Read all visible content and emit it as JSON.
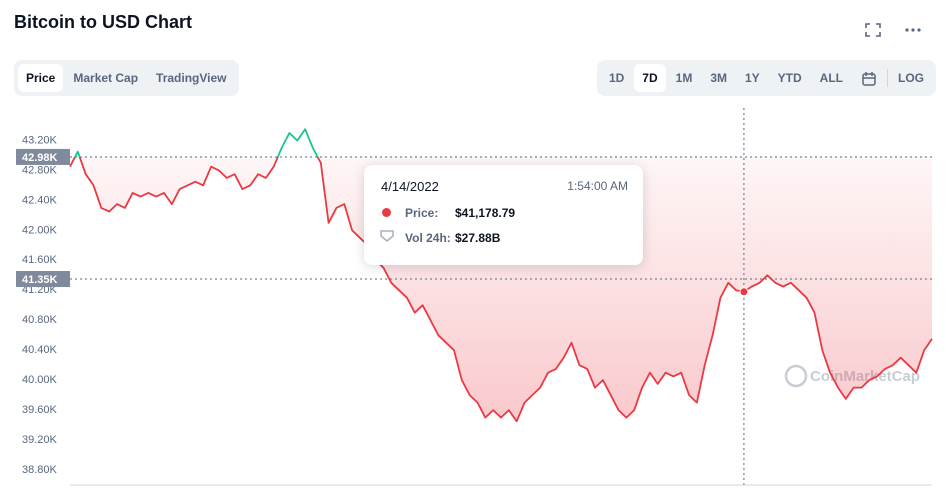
{
  "chart_data": {
    "type": "line",
    "title": "Bitcoin to USD Chart",
    "tabs": [
      "Price",
      "Market Cap",
      "TradingView"
    ],
    "ranges": [
      "1D",
      "7D",
      "1M",
      "3M",
      "1Y",
      "YTD",
      "ALL"
    ],
    "log_button": "LOG",
    "watermark": "CoinMarketCap",
    "up_color": "#16c784",
    "down_color": "#ea3943",
    "ylim": [
      38600,
      43540
    ],
    "yticks": [
      {
        "value": 38800,
        "label": "38.80K"
      },
      {
        "value": 39200,
        "label": "39.20K"
      },
      {
        "value": 39600,
        "label": "39.60K"
      },
      {
        "value": 40000,
        "label": "40.00K"
      },
      {
        "value": 40400,
        "label": "40.40K"
      },
      {
        "value": 40800,
        "label": "40.80K"
      },
      {
        "value": 41200,
        "label": "41.20K"
      },
      {
        "value": 41600,
        "label": "41.60K"
      },
      {
        "value": 42000,
        "label": "42.00K"
      },
      {
        "value": 42400,
        "label": "42.40K"
      },
      {
        "value": 42800,
        "label": "42.80K"
      },
      {
        "value": 43200,
        "label": "43.20K"
      }
    ],
    "price_markers": [
      {
        "value": 42980,
        "label": "42.98K"
      },
      {
        "value": 41350,
        "label": "41.35K"
      }
    ],
    "tooltip": {
      "date": "4/14/2022",
      "time": "1:54:00 AM",
      "price_label": "Price:",
      "price": "$41,178.79",
      "volume_label": "Vol 24h:",
      "volume": "$27.88B"
    },
    "values": [
      42850,
      43050,
      42750,
      42600,
      42300,
      42250,
      42350,
      42300,
      42500,
      42450,
      42500,
      42450,
      42500,
      42350,
      42550,
      42600,
      42650,
      42600,
      42850,
      42800,
      42700,
      42750,
      42550,
      42600,
      42750,
      42700,
      42850,
      43100,
      43300,
      43200,
      43350,
      43100,
      42900,
      42100,
      42300,
      42350,
      42000,
      41900,
      41800,
      41600,
      41500,
      41300,
      41200,
      41100,
      40900,
      41000,
      40800,
      40600,
      40500,
      40400,
      40000,
      39800,
      39700,
      39500,
      39600,
      39500,
      39600,
      39450,
      39700,
      39800,
      39900,
      40100,
      40150,
      40300,
      40500,
      40200,
      40150,
      39900,
      40000,
      39800,
      39600,
      39500,
      39600,
      39900,
      40100,
      39950,
      40100,
      40050,
      40100,
      39800,
      39700,
      40200,
      40600,
      41100,
      41300,
      41200,
      41180,
      41250,
      41300,
      41400,
      41300,
      41250,
      41300,
      41200,
      41100,
      40900,
      40400,
      40100,
      39900,
      39750,
      39900,
      39900,
      40000,
      40050,
      40150,
      40200,
      40300,
      40200,
      40100,
      40400,
      40550
    ]
  }
}
